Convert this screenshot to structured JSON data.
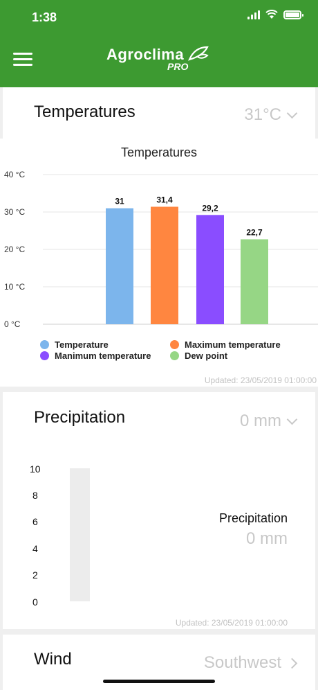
{
  "status": {
    "time": "1:38"
  },
  "header": {
    "logo_main": "Agroclima",
    "logo_sub": "PRO"
  },
  "temperatures": {
    "title": "Temperatures",
    "value": "31°C",
    "updated": "Updated: 23/05/2019 01:00:00"
  },
  "chart_data": {
    "type": "bar",
    "title": "Temperatures",
    "categories": [
      "Temperature",
      "Maximum temperature",
      "Manimum temperature",
      "Dew point"
    ],
    "values": [
      31,
      31.4,
      29.2,
      22.7
    ],
    "value_labels": [
      "31",
      "31,4",
      "29,2",
      "22,7"
    ],
    "colors": [
      "#7cb5ec",
      "#ff8640",
      "#8a4dff",
      "#96d685"
    ],
    "ylim": [
      0,
      40
    ],
    "yticks": [
      "0 °C",
      "10 °C",
      "20 °C",
      "30 °C",
      "40 °C"
    ],
    "ytick_values": [
      0,
      10,
      20,
      30,
      40
    ],
    "grid": true,
    "legend": [
      {
        "name": "Temperature",
        "color": "#7cb5ec"
      },
      {
        "name": "Maximum temperature",
        "color": "#ff8640"
      },
      {
        "name": "Manimum temperature",
        "color": "#8a4dff"
      },
      {
        "name": "Dew point",
        "color": "#96d685"
      }
    ]
  },
  "precipitation": {
    "title": "Precipitation",
    "value": "0 mm",
    "label": "Precipitation",
    "amount": "0 mm",
    "axis": [
      "10",
      "8",
      "6",
      "4",
      "2",
      "0"
    ],
    "updated": "Updated: 23/05/2019 01:00:00"
  },
  "wind": {
    "title": "Wind",
    "value": "Southwest"
  }
}
